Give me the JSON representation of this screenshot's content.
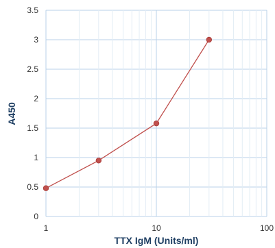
{
  "chart_data": {
    "type": "line",
    "title": "",
    "xlabel": "TTX IgM (Units/ml)",
    "ylabel": "A450",
    "x_scale": "log",
    "xlim": [
      1,
      100
    ],
    "ylim": [
      0,
      3.5
    ],
    "x_ticks": [
      "1",
      "10",
      "100"
    ],
    "y_ticks": [
      "0",
      "0.5",
      "1",
      "1.5",
      "2",
      "2.5",
      "3",
      "3.5"
    ],
    "grid": true,
    "legend": "none",
    "series": [
      {
        "x": [
          1,
          3,
          10,
          30
        ],
        "y": [
          0.48,
          0.95,
          1.58,
          3.0
        ],
        "color": "#c0504d"
      }
    ],
    "colors": {
      "grid_minor": "#e3edf5",
      "grid_major": "#b8d2e8",
      "axis_title": "#1f3f63"
    }
  }
}
